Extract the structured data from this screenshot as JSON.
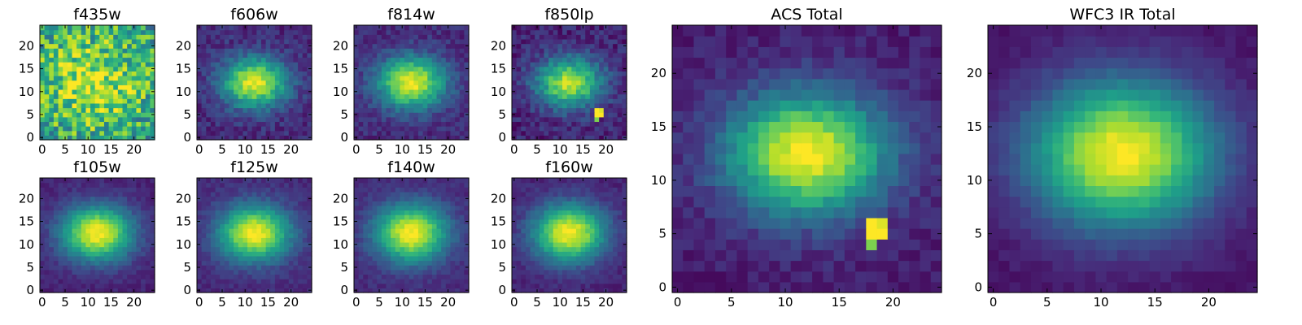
{
  "chart_data": {
    "type": "heatmap",
    "colormap": "viridis",
    "colormap_stops": [
      "#440154",
      "#482878",
      "#3e4989",
      "#31688e",
      "#26828e",
      "#1f9e89",
      "#35b779",
      "#6ece58",
      "#b5de2b",
      "#fde725"
    ],
    "axes_frame_color": "#000000",
    "grid_size": [
      25,
      25
    ],
    "xlim": [
      0,
      24
    ],
    "ylim": [
      0,
      24
    ],
    "panels": [
      {
        "title": "f435w",
        "xticks": [
          "0",
          "5",
          "10",
          "15",
          "20"
        ],
        "yticks": [
          "0",
          "5",
          "10",
          "15",
          "20"
        ],
        "xtick_values": [
          0,
          5,
          10,
          15,
          20
        ],
        "ytick_values": [
          0,
          5,
          10,
          15,
          20
        ],
        "center": [
          11,
          12
        ],
        "sigma": [
          8,
          7
        ],
        "background": 0.55,
        "peak": 0.35,
        "noise": 0.55,
        "seed": 11
      },
      {
        "title": "f606w",
        "xticks": [
          "0",
          "5",
          "10",
          "15",
          "20"
        ],
        "yticks": [
          "0",
          "5",
          "10",
          "15",
          "20"
        ],
        "xtick_values": [
          0,
          5,
          10,
          15,
          20
        ],
        "ytick_values": [
          0,
          5,
          10,
          15,
          20
        ],
        "center": [
          12,
          12
        ],
        "sigma": [
          5,
          3.8
        ],
        "background": 0.12,
        "peak": 0.85,
        "noise": 0.18,
        "seed": 23
      },
      {
        "title": "f814w",
        "xticks": [
          "0",
          "5",
          "10",
          "15",
          "20"
        ],
        "yticks": [
          "0",
          "5",
          "10",
          "15",
          "20"
        ],
        "xtick_values": [
          0,
          5,
          10,
          15,
          20
        ],
        "ytick_values": [
          0,
          5,
          10,
          15,
          20
        ],
        "center": [
          12,
          12
        ],
        "sigma": [
          5.2,
          4
        ],
        "background": 0.12,
        "peak": 0.85,
        "noise": 0.16,
        "seed": 37
      },
      {
        "title": "f850lp",
        "xticks": [
          "0",
          "5",
          "10",
          "15",
          "20"
        ],
        "yticks": [
          "0",
          "5",
          "10",
          "15",
          "20"
        ],
        "xtick_values": [
          0,
          5,
          10,
          15,
          20
        ],
        "ytick_values": [
          0,
          5,
          10,
          15,
          20
        ],
        "center": [
          12,
          12
        ],
        "sigma": [
          5,
          3.8
        ],
        "background": 0.1,
        "peak": 0.8,
        "noise": 0.2,
        "seed": 41,
        "hotspot": [
          18,
          5
        ]
      },
      {
        "title": "f105w",
        "xticks": [
          "0",
          "5",
          "10",
          "15",
          "20"
        ],
        "yticks": [
          "0",
          "5",
          "10",
          "15",
          "20"
        ],
        "xtick_values": [
          0,
          5,
          10,
          15,
          20
        ],
        "ytick_values": [
          0,
          5,
          10,
          15,
          20
        ],
        "center": [
          12,
          12.5
        ],
        "sigma": [
          5.5,
          4.2
        ],
        "background": 0.1,
        "peak": 0.9,
        "noise": 0.1,
        "seed": 53
      },
      {
        "title": "f125w",
        "xticks": [
          "0",
          "5",
          "10",
          "15",
          "20"
        ],
        "yticks": [
          "0",
          "5",
          "10",
          "15",
          "20"
        ],
        "xtick_values": [
          0,
          5,
          10,
          15,
          20
        ],
        "ytick_values": [
          0,
          5,
          10,
          15,
          20
        ],
        "center": [
          12,
          12.5
        ],
        "sigma": [
          5.5,
          4.2
        ],
        "background": 0.12,
        "peak": 0.88,
        "noise": 0.1,
        "seed": 67
      },
      {
        "title": "f140w",
        "xticks": [
          "0",
          "5",
          "10",
          "15",
          "20"
        ],
        "yticks": [
          "0",
          "5",
          "10",
          "15",
          "20"
        ],
        "xtick_values": [
          0,
          5,
          10,
          15,
          20
        ],
        "ytick_values": [
          0,
          5,
          10,
          15,
          20
        ],
        "center": [
          12,
          12.5
        ],
        "sigma": [
          5.5,
          4.4
        ],
        "background": 0.12,
        "peak": 0.88,
        "noise": 0.1,
        "seed": 71
      },
      {
        "title": "f160w",
        "xticks": [
          "0",
          "5",
          "10",
          "15",
          "20"
        ],
        "yticks": [
          "0",
          "5",
          "10",
          "15",
          "20"
        ],
        "xtick_values": [
          0,
          5,
          10,
          15,
          20
        ],
        "ytick_values": [
          0,
          5,
          10,
          15,
          20
        ],
        "center": [
          12,
          12.5
        ],
        "sigma": [
          5.5,
          4.4
        ],
        "background": 0.1,
        "peak": 0.9,
        "noise": 0.1,
        "seed": 83
      },
      {
        "title": "ACS Total",
        "xticks": [
          "0",
          "5",
          "10",
          "15",
          "20"
        ],
        "yticks": [
          "0",
          "5",
          "10",
          "15",
          "20"
        ],
        "xtick_values": [
          0,
          5,
          10,
          15,
          20
        ],
        "ytick_values": [
          0,
          5,
          10,
          15,
          20
        ],
        "center": [
          12,
          12.5
        ],
        "sigma": [
          5.2,
          4
        ],
        "background": 0.08,
        "peak": 0.92,
        "noise": 0.12,
        "seed": 97,
        "hotspot": [
          18,
          5
        ]
      },
      {
        "title": "WFC3 IR Total",
        "xticks": [
          "0",
          "5",
          "10",
          "15",
          "20"
        ],
        "yticks": [
          "0",
          "5",
          "10",
          "15",
          "20"
        ],
        "xtick_values": [
          0,
          5,
          10,
          15,
          20
        ],
        "ytick_values": [
          0,
          5,
          10,
          15,
          20
        ],
        "center": [
          12,
          12.5
        ],
        "sigma": [
          6,
          4.8
        ],
        "background": 0.05,
        "peak": 0.95,
        "noise": 0.06,
        "seed": 101
      }
    ]
  }
}
